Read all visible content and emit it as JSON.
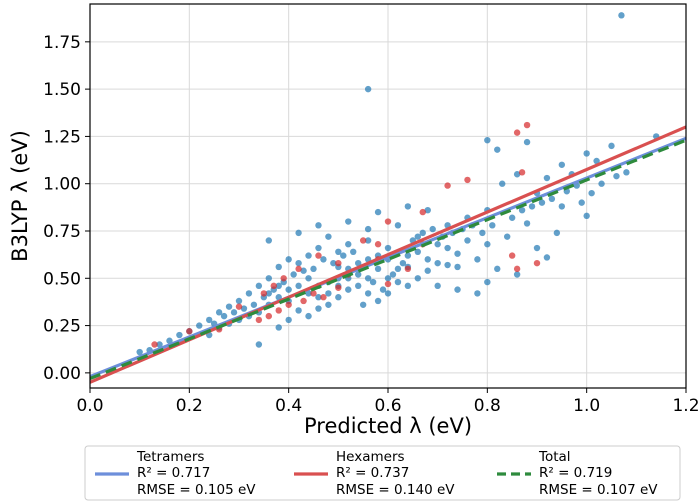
{
  "chart_data": {
    "type": "scatter",
    "xlabel": "Predicted λ (eV)",
    "ylabel": "B3LYP λ (eV)",
    "xlim": [
      0.0,
      1.2
    ],
    "ylim": [
      -0.08,
      1.95
    ],
    "xticks": [
      0.0,
      0.2,
      0.4,
      0.6,
      0.8,
      1.0,
      1.2
    ],
    "yticks": [
      0.0,
      0.25,
      0.5,
      0.75,
      1.0,
      1.25,
      1.5,
      1.75
    ],
    "xtick_labels": [
      "0.0",
      "0.2",
      "0.4",
      "0.6",
      "0.8",
      "1.0",
      "1.2"
    ],
    "ytick_labels": [
      "0.00",
      "0.25",
      "0.50",
      "0.75",
      "1.00",
      "1.25",
      "1.50",
      "1.75"
    ],
    "grid": true,
    "legend_position": "below",
    "series": [
      {
        "name": "Tetramers",
        "marker_color": "#1f77b4",
        "fit_color": "#6d8fdb",
        "fit_style": "solid",
        "stats": [
          "R² = 0.717",
          "RMSE = 0.105 eV"
        ],
        "fit_line": [
          [
            0.0,
            -0.02
          ],
          [
            1.2,
            1.24
          ]
        ],
        "points": [
          [
            1.07,
            1.89
          ],
          [
            0.56,
            1.5
          ],
          [
            1.14,
            1.25
          ],
          [
            1.05,
            1.2
          ],
          [
            1.0,
            1.16
          ],
          [
            1.02,
            1.12
          ],
          [
            0.95,
            1.1
          ],
          [
            0.88,
            1.22
          ],
          [
            0.82,
            1.18
          ],
          [
            0.8,
            1.23
          ],
          [
            0.97,
            1.05
          ],
          [
            0.92,
            1.03
          ],
          [
            0.86,
            1.05
          ],
          [
            0.83,
            1.0
          ],
          [
            0.9,
            0.95
          ],
          [
            1.0,
            0.83
          ],
          [
            1.01,
            0.95
          ],
          [
            0.95,
            0.88
          ],
          [
            0.88,
            0.79
          ],
          [
            0.8,
            0.86
          ],
          [
            0.76,
            0.82
          ],
          [
            0.72,
            0.78
          ],
          [
            0.68,
            0.86
          ],
          [
            0.64,
            0.88
          ],
          [
            0.58,
            0.85
          ],
          [
            0.62,
            0.78
          ],
          [
            0.66,
            0.72
          ],
          [
            0.7,
            0.68
          ],
          [
            0.74,
            0.63
          ],
          [
            0.78,
            0.6
          ],
          [
            0.82,
            0.55
          ],
          [
            0.86,
            0.52
          ],
          [
            0.92,
            0.61
          ],
          [
            0.94,
            0.74
          ],
          [
            0.9,
            0.66
          ],
          [
            0.84,
            0.72
          ],
          [
            0.8,
            0.68
          ],
          [
            0.76,
            0.7
          ],
          [
            0.72,
            0.57
          ],
          [
            0.68,
            0.6
          ],
          [
            0.64,
            0.62
          ],
          [
            0.6,
            0.66
          ],
          [
            0.56,
            0.7
          ],
          [
            0.52,
            0.68
          ],
          [
            0.5,
            0.64
          ],
          [
            0.48,
            0.72
          ],
          [
            0.46,
            0.66
          ],
          [
            0.44,
            0.62
          ],
          [
            0.42,
            0.58
          ],
          [
            0.4,
            0.6
          ],
          [
            0.38,
            0.56
          ],
          [
            0.36,
            0.5
          ],
          [
            0.34,
            0.46
          ],
          [
            0.32,
            0.42
          ],
          [
            0.3,
            0.38
          ],
          [
            0.28,
            0.35
          ],
          [
            0.26,
            0.32
          ],
          [
            0.24,
            0.28
          ],
          [
            0.22,
            0.25
          ],
          [
            0.2,
            0.22
          ],
          [
            0.18,
            0.2
          ],
          [
            0.16,
            0.17
          ],
          [
            0.14,
            0.15
          ],
          [
            0.12,
            0.12
          ],
          [
            0.1,
            0.11
          ],
          [
            0.36,
            0.7
          ],
          [
            0.42,
            0.74
          ],
          [
            0.46,
            0.78
          ],
          [
            0.52,
            0.8
          ],
          [
            0.56,
            0.76
          ],
          [
            0.5,
            0.56
          ],
          [
            0.52,
            0.5
          ],
          [
            0.54,
            0.46
          ],
          [
            0.56,
            0.42
          ],
          [
            0.58,
            0.38
          ],
          [
            0.5,
            0.4
          ],
          [
            0.48,
            0.36
          ],
          [
            0.46,
            0.34
          ],
          [
            0.44,
            0.3
          ],
          [
            0.42,
            0.33
          ],
          [
            0.4,
            0.38
          ],
          [
            0.38,
            0.4
          ],
          [
            0.36,
            0.36
          ],
          [
            0.34,
            0.32
          ],
          [
            0.32,
            0.3
          ],
          [
            0.3,
            0.28
          ],
          [
            0.28,
            0.26
          ],
          [
            0.26,
            0.24
          ],
          [
            0.24,
            0.2
          ],
          [
            0.34,
            0.15
          ],
          [
            0.38,
            0.24
          ],
          [
            0.4,
            0.28
          ],
          [
            0.44,
            0.42
          ],
          [
            0.46,
            0.46
          ],
          [
            0.48,
            0.48
          ],
          [
            0.5,
            0.5
          ],
          [
            0.52,
            0.55
          ],
          [
            0.54,
            0.58
          ],
          [
            0.56,
            0.6
          ],
          [
            0.58,
            0.55
          ],
          [
            0.6,
            0.5
          ],
          [
            0.62,
            0.48
          ],
          [
            0.64,
            0.46
          ],
          [
            0.66,
            0.5
          ],
          [
            0.68,
            0.54
          ],
          [
            0.7,
            0.58
          ],
          [
            0.62,
            0.55
          ],
          [
            0.6,
            0.6
          ],
          [
            0.58,
            0.62
          ],
          [
            0.56,
            0.5
          ],
          [
            0.54,
            0.52
          ],
          [
            0.52,
            0.44
          ],
          [
            0.5,
            0.46
          ],
          [
            0.48,
            0.42
          ],
          [
            0.46,
            0.4
          ],
          [
            0.44,
            0.5
          ],
          [
            0.42,
            0.46
          ],
          [
            0.4,
            0.44
          ],
          [
            0.38,
            0.46
          ],
          [
            0.36,
            0.42
          ],
          [
            0.55,
            0.36
          ],
          [
            0.6,
            0.42
          ],
          [
            0.64,
            0.56
          ],
          [
            0.66,
            0.64
          ],
          [
            0.7,
            0.46
          ],
          [
            0.74,
            0.44
          ],
          [
            0.78,
            0.42
          ],
          [
            0.8,
            0.48
          ],
          [
            0.74,
            0.56
          ],
          [
            0.72,
            0.66
          ],
          [
            0.45,
            0.55
          ],
          [
            0.47,
            0.6
          ],
          [
            0.49,
            0.58
          ],
          [
            0.51,
            0.62
          ],
          [
            0.53,
            0.64
          ],
          [
            0.55,
            0.56
          ],
          [
            0.57,
            0.48
          ],
          [
            0.59,
            0.44
          ],
          [
            0.61,
            0.52
          ],
          [
            0.63,
            0.58
          ],
          [
            0.41,
            0.52
          ],
          [
            0.43,
            0.54
          ],
          [
            0.39,
            0.48
          ],
          [
            0.37,
            0.44
          ],
          [
            0.35,
            0.4
          ],
          [
            0.33,
            0.36
          ],
          [
            0.31,
            0.34
          ],
          [
            0.29,
            0.32
          ],
          [
            0.27,
            0.3
          ],
          [
            0.25,
            0.26
          ],
          [
            0.65,
            0.7
          ],
          [
            0.67,
            0.74
          ],
          [
            0.69,
            0.76
          ],
          [
            0.71,
            0.72
          ],
          [
            0.73,
            0.74
          ],
          [
            0.75,
            0.76
          ],
          [
            0.77,
            0.78
          ],
          [
            0.79,
            0.74
          ],
          [
            0.81,
            0.78
          ],
          [
            0.85,
            0.82
          ],
          [
            0.87,
            0.86
          ],
          [
            0.89,
            0.88
          ],
          [
            0.91,
            0.9
          ],
          [
            0.93,
            0.92
          ],
          [
            0.96,
            0.96
          ],
          [
            0.98,
            0.99
          ],
          [
            1.03,
            1.0
          ],
          [
            1.06,
            1.04
          ],
          [
            1.08,
            1.06
          ],
          [
            0.99,
            0.9
          ]
        ]
      },
      {
        "name": "Hexamers",
        "marker_color": "#d62728",
        "fit_color": "#d95050",
        "fit_style": "solid",
        "stats": [
          "R² = 0.737",
          "RMSE = 0.140 eV"
        ],
        "fit_line": [
          [
            0.0,
            -0.05
          ],
          [
            1.2,
            1.3
          ]
        ],
        "points": [
          [
            0.86,
            1.27
          ],
          [
            0.88,
            1.31
          ],
          [
            0.76,
            1.02
          ],
          [
            0.87,
            1.06
          ],
          [
            0.72,
            0.99
          ],
          [
            0.67,
            0.85
          ],
          [
            0.6,
            0.8
          ],
          [
            0.55,
            0.7
          ],
          [
            0.58,
            0.6
          ],
          [
            0.52,
            0.52
          ],
          [
            0.5,
            0.45
          ],
          [
            0.47,
            0.4
          ],
          [
            0.45,
            0.42
          ],
          [
            0.43,
            0.38
          ],
          [
            0.4,
            0.36
          ],
          [
            0.38,
            0.33
          ],
          [
            0.36,
            0.3
          ],
          [
            0.34,
            0.28
          ],
          [
            0.3,
            0.35
          ],
          [
            0.26,
            0.23
          ],
          [
            0.2,
            0.22
          ],
          [
            0.13,
            0.15
          ],
          [
            0.85,
            0.62
          ],
          [
            0.86,
            0.55
          ],
          [
            0.9,
            0.58
          ],
          [
            0.6,
            0.47
          ],
          [
            0.64,
            0.55
          ],
          [
            0.67,
            0.68
          ],
          [
            0.58,
            0.68
          ],
          [
            0.5,
            0.58
          ],
          [
            0.46,
            0.62
          ],
          [
            0.42,
            0.55
          ],
          [
            0.39,
            0.5
          ],
          [
            0.37,
            0.46
          ],
          [
            0.35,
            0.42
          ]
        ]
      },
      {
        "name": "Total",
        "fit_color": "#2e8b3d",
        "fit_style": "dashed",
        "stats": [
          "R² = 0.719",
          "RMSE = 0.107 eV"
        ],
        "fit_line": [
          [
            0.0,
            -0.03
          ],
          [
            1.2,
            1.23
          ]
        ]
      }
    ]
  }
}
